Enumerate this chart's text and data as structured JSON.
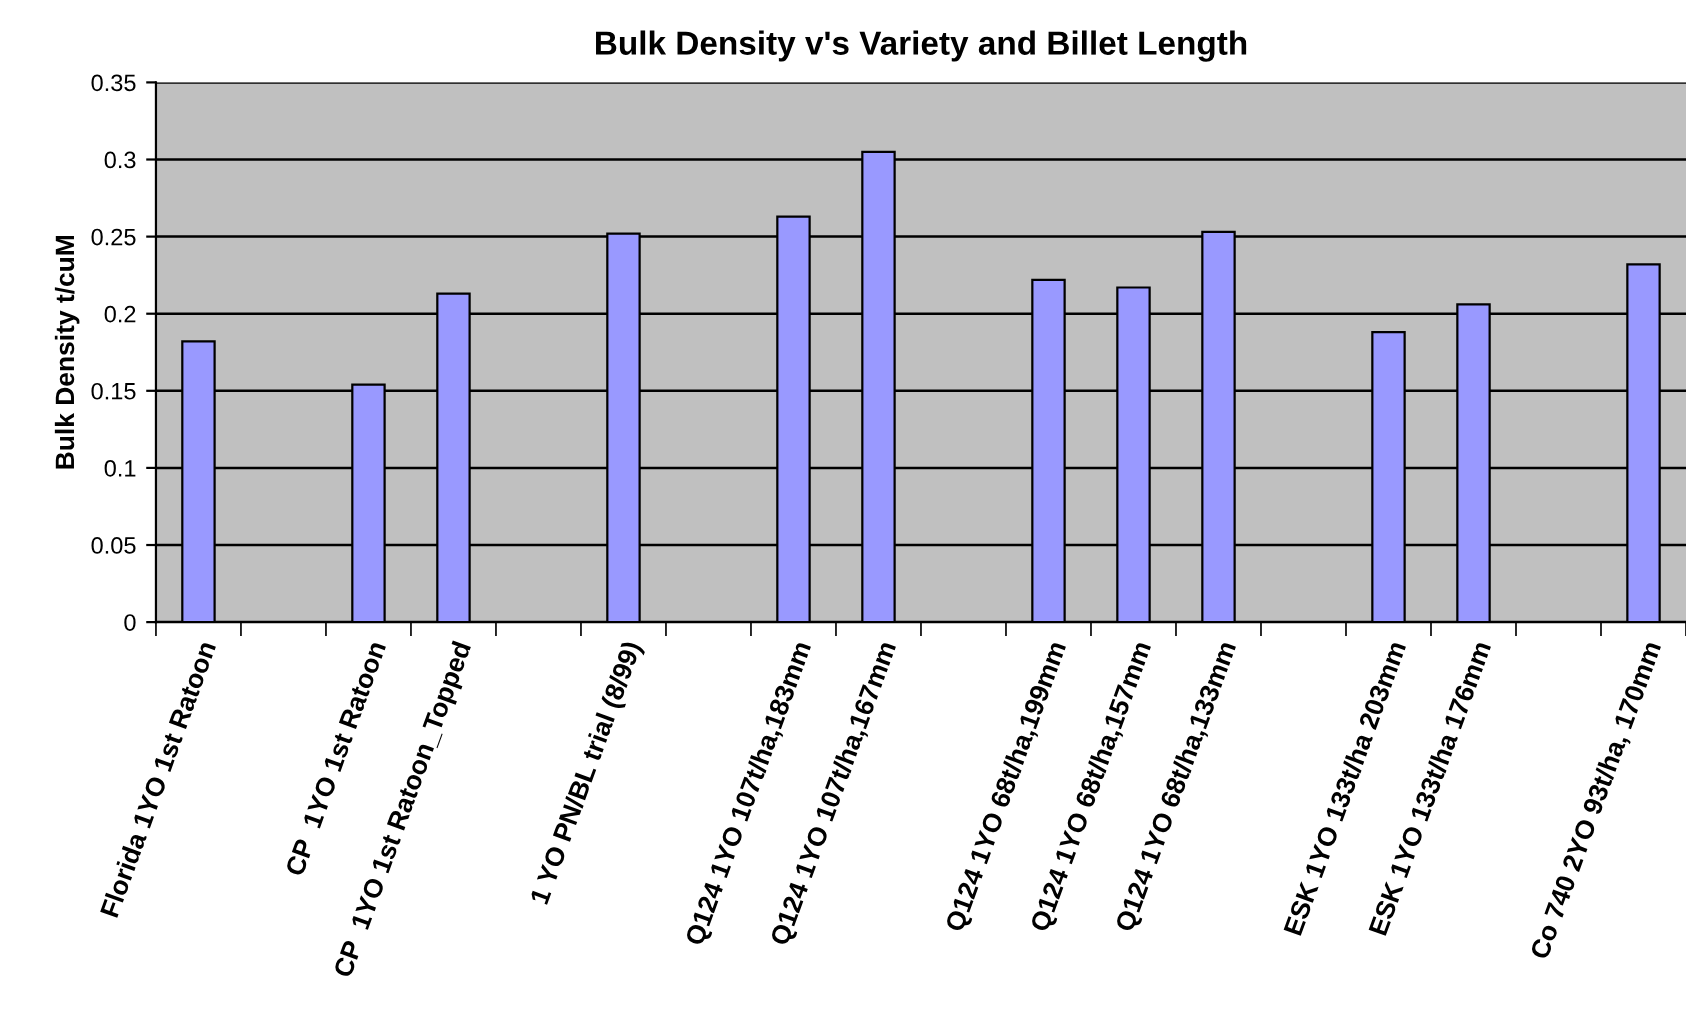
{
  "chart_data": {
    "type": "bar",
    "title": "Bulk Density v's Variety and Billet Length",
    "ylabel": "Bulk Density t/cuM",
    "categories": [
      "Florida 1YO 1st Ratoon",
      null,
      "CP  1YO 1st Ratoon",
      "CP  1YO 1st Ratoon_Topped",
      null,
      "1 YO PN/BL trial (8/99)",
      null,
      "Q124 1YO 107t/ha,183mm",
      "Q124 1YO 107t/ha,167mm",
      null,
      "Q124 1YO 68t/ha,199mm",
      "Q124 1YO 68t/ha,157mm",
      "Q124 1YO 68t/ha,133mm",
      null,
      "ESK 1YO 133t/ha 203mm",
      "ESK 1YO 133t/ha 176mm",
      null,
      "Co 740 2YO 93t/ha, 170mm"
    ],
    "values": [
      0.182,
      null,
      0.154,
      0.213,
      null,
      0.252,
      null,
      0.263,
      0.305,
      null,
      0.222,
      0.217,
      0.253,
      null,
      0.188,
      0.206,
      null,
      0.232
    ],
    "color": "#9999ff",
    "ylim": [
      0,
      0.35
    ],
    "yticks": [
      0,
      0.05,
      0.1,
      0.15,
      0.2,
      0.25,
      0.3,
      0.35
    ],
    "grid": "y"
  }
}
